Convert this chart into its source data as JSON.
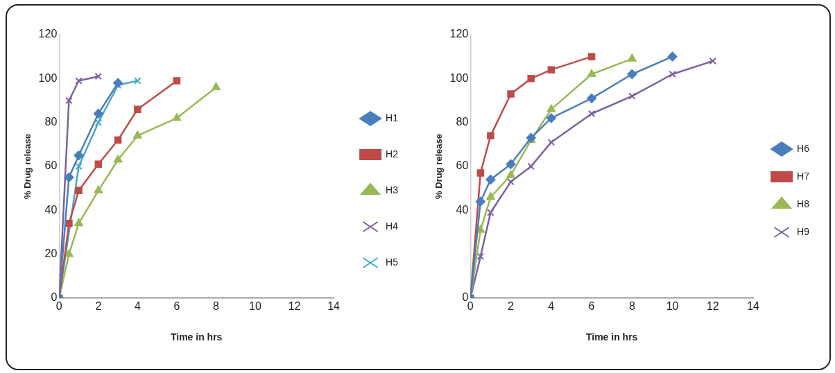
{
  "chart_data": [
    {
      "type": "line",
      "xlabel": "Time in hrs",
      "ylabel": "% Drug release",
      "xlim": [
        0,
        14
      ],
      "xticks": [
        0,
        2,
        4,
        6,
        8,
        10,
        12,
        14
      ],
      "ylim": [
        0,
        120
      ],
      "yticks": [
        0,
        20,
        40,
        60,
        80,
        100,
        120
      ],
      "grid": false,
      "legend": "right",
      "series": [
        {
          "name": "H1",
          "color": "#4a7ebb",
          "marker": "diamond",
          "x": [
            0,
            0.5,
            1,
            2,
            3
          ],
          "values": [
            0,
            55,
            65,
            84,
            98
          ]
        },
        {
          "name": "H2",
          "color": "#be4b48",
          "marker": "square",
          "x": [
            0,
            0.5,
            1,
            2,
            3,
            4,
            6
          ],
          "values": [
            0,
            34,
            49,
            61,
            72,
            86,
            99
          ]
        },
        {
          "name": "H3",
          "color": "#98b954",
          "marker": "triangle",
          "x": [
            0,
            0.5,
            1,
            2,
            3,
            4,
            6,
            8
          ],
          "values": [
            0,
            20,
            34,
            49,
            63,
            74,
            82,
            96
          ]
        },
        {
          "name": "H4",
          "color": "#7d60a0",
          "marker": "cross",
          "x": [
            0,
            0.5,
            1,
            2
          ],
          "values": [
            0,
            90,
            99,
            101
          ]
        },
        {
          "name": "H5",
          "color": "#46aac5",
          "marker": "cross",
          "x": [
            0,
            1,
            2,
            3,
            4
          ],
          "values": [
            0,
            60,
            80,
            97,
            99
          ]
        }
      ]
    },
    {
      "type": "line",
      "xlabel": "Time in hrs",
      "ylabel": "% Drug release",
      "xlim": [
        0,
        14
      ],
      "xticks": [
        0,
        2,
        4,
        6,
        8,
        10,
        12,
        14
      ],
      "ylim": [
        0,
        120
      ],
      "yticks": [
        0,
        40,
        60,
        80,
        100,
        120
      ],
      "grid": false,
      "legend": "right",
      "series": [
        {
          "name": "H6",
          "color": "#4a7ebb",
          "marker": "diamond",
          "x": [
            0,
            0.5,
            1,
            2,
            3,
            4,
            6,
            8,
            10
          ],
          "values": [
            0,
            44,
            54,
            61,
            73,
            82,
            91,
            102,
            110
          ]
        },
        {
          "name": "H7",
          "color": "#be4b48",
          "marker": "square",
          "x": [
            0,
            0.5,
            1,
            2,
            3,
            4,
            6
          ],
          "values": [
            0,
            57,
            74,
            93,
            100,
            104,
            110
          ]
        },
        {
          "name": "H8",
          "color": "#98b954",
          "marker": "triangle",
          "x": [
            0,
            0.5,
            1,
            2,
            3,
            4,
            6,
            8
          ],
          "values": [
            0,
            31,
            46,
            56,
            72,
            86,
            102,
            109
          ]
        },
        {
          "name": "H9",
          "color": "#7d60a0",
          "marker": "cross",
          "x": [
            0,
            0.5,
            1,
            2,
            3,
            4,
            6,
            8,
            10,
            12
          ],
          "values": [
            0,
            19,
            39,
            53,
            60,
            71,
            84,
            92,
            102,
            108
          ]
        }
      ]
    }
  ]
}
